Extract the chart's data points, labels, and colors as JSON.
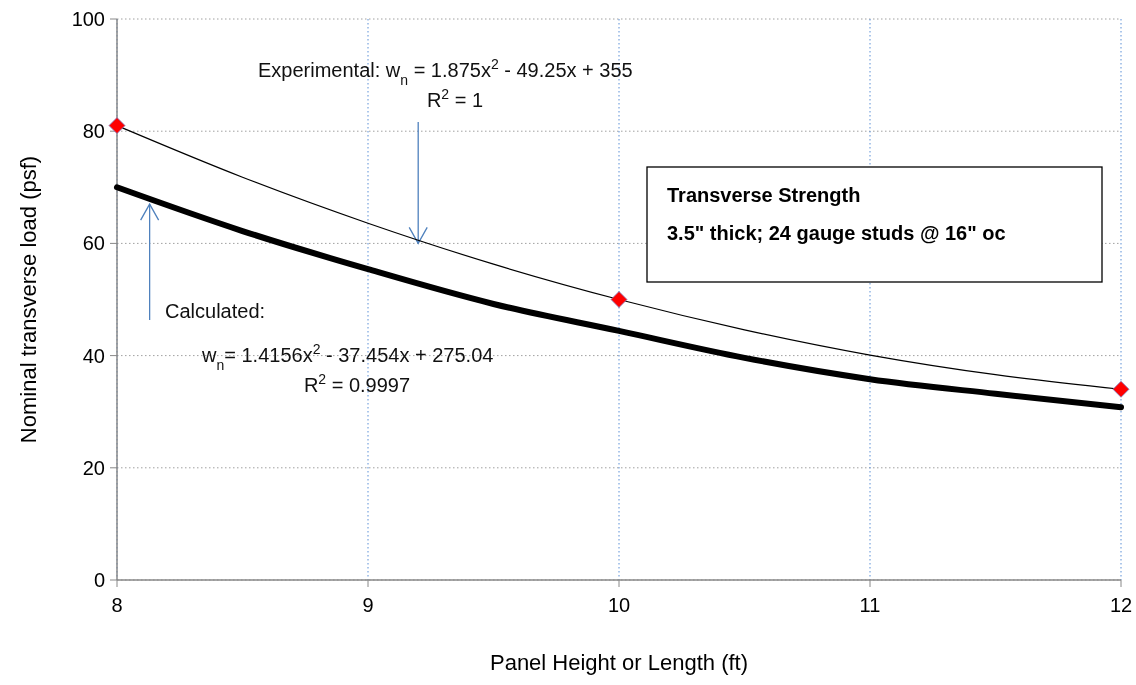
{
  "chart_data": {
    "type": "line",
    "title": "Transverse Strength",
    "subtitle": "3.5\" thick; 24 gauge studs @ 16\" oc",
    "xlabel": "Panel Height or Length (ft)",
    "ylabel": "Nominal  transverse load (psf)",
    "xlim": [
      8,
      12
    ],
    "xticks": [
      8,
      9,
      10,
      11,
      12
    ],
    "ylim": [
      0,
      100
    ],
    "yticks": [
      0,
      20,
      40,
      60,
      80,
      100
    ],
    "grid": true,
    "legend": false,
    "series": [
      {
        "color": "#000000",
        "marker": "none",
        "line_style": "solid",
        "x": [
          8,
          8.5,
          9,
          9.5,
          10,
          10.5,
          11,
          11.5,
          12
        ],
        "values": [
          81,
          71.8,
          63.6,
          56.3,
          50,
          44.6,
          40.1,
          36.6,
          34
        ]
      },
      {
        "color": "#000000",
        "marker": "none",
        "line_style": "solid",
        "x": [
          8,
          8.5,
          9,
          9.5,
          10,
          10.5,
          11,
          11.5,
          12
        ],
        "values": [
          70,
          62.2,
          55.4,
          49.2,
          44.4,
          39.6,
          35.8,
          33.2,
          30.8
        ]
      },
      {
        "type": "scatter",
        "color": "#ff0000",
        "marker": "diamond",
        "x": [
          8,
          10,
          12
        ],
        "values": [
          81,
          50,
          34
        ]
      }
    ],
    "annotations": [
      "Experimental:  w$_{n}$ = 1.875x$^{2}$ - 49.25x + 355",
      {
        "text": "R$^{2}$ = 1",
        "x": 9.2,
        "y": 60
      },
      {
        "text": "Calculated:",
        "x": 8.13,
        "y": 67
      },
      "w$_{n}$= 1.4156x$^{2}$ - 37.454x + 275.04",
      "R$^{2}$ = 0.9997"
    ]
  }
}
